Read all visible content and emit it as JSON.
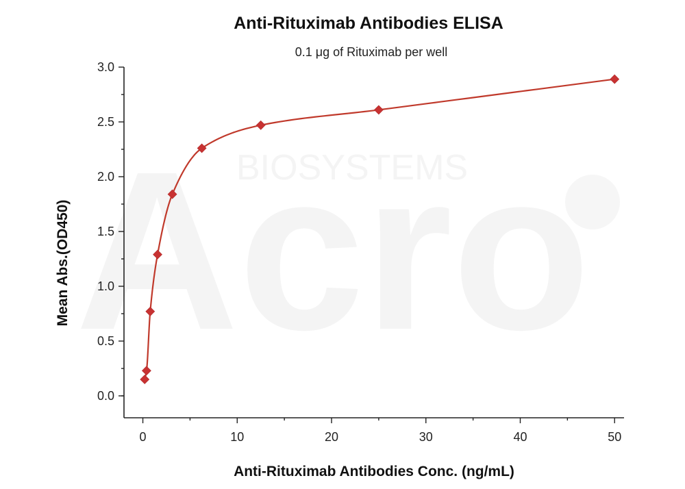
{
  "watermark": {
    "brand": "Acro",
    "sub": "BIOSYSTEMS"
  },
  "chart_data": {
    "type": "scatter",
    "title": "Anti-Rituximab Antibodies ELISA",
    "subtitle": "0.1 μg of Rituximab per well",
    "xlabel": "Anti-Rituximab Antibodies Conc. (ng/mL)",
    "ylabel": "Mean Abs.(OD450)",
    "xlim": [
      -2,
      51
    ],
    "ylim": [
      -0.2,
      3.0
    ],
    "x_ticks": [
      0,
      10,
      20,
      30,
      40,
      50
    ],
    "y_ticks": [
      0.0,
      0.5,
      1.0,
      1.5,
      2.0,
      2.5,
      3.0
    ],
    "x_tick_labels": [
      "0",
      "10",
      "20",
      "30",
      "40",
      "50"
    ],
    "y_tick_labels": [
      "0.0",
      "0.5",
      "1.0",
      "1.5",
      "2.0",
      "2.5",
      "3.0"
    ],
    "grid": false,
    "series": [
      {
        "color": "#c83232",
        "marker": "diamond",
        "fit": "curve",
        "x": [
          0.195,
          0.39,
          0.78,
          1.56,
          3.125,
          6.25,
          12.5,
          25,
          50
        ],
        "y": [
          0.15,
          0.23,
          0.77,
          1.29,
          1.84,
          2.26,
          2.47,
          2.61,
          2.89
        ]
      }
    ]
  }
}
